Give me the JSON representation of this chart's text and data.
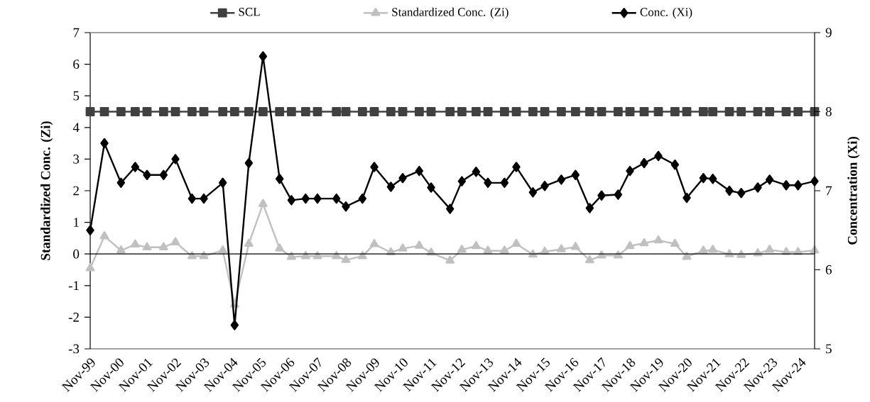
{
  "chart_data": {
    "type": "line",
    "ylabel": "Standardized Conc. (Zi)",
    "y2label": "Concentration (Xi)",
    "x": [
      "1999-11",
      "2000-05",
      "2000-12",
      "2001-06",
      "2001-11",
      "2002-06",
      "2002-11",
      "2003-06",
      "2003-11",
      "2004-07",
      "2004-12",
      "2005-06",
      "2005-12",
      "2006-07",
      "2006-12",
      "2007-06",
      "2007-11",
      "2008-07",
      "2008-11",
      "2009-06",
      "2009-11",
      "2010-06",
      "2010-11",
      "2011-06",
      "2011-11",
      "2012-07",
      "2012-12",
      "2013-06",
      "2013-11",
      "2014-06",
      "2014-11",
      "2015-06",
      "2015-11",
      "2016-06",
      "2016-12",
      "2017-06",
      "2017-11",
      "2018-06",
      "2018-11",
      "2019-05",
      "2019-11",
      "2020-06",
      "2020-11",
      "2021-06",
      "2021-10",
      "2022-05",
      "2022-10",
      "2023-05",
      "2023-10",
      "2024-05",
      "2024-10",
      "2025-05"
    ],
    "series": [
      {
        "name": "SCL",
        "color": "#404040",
        "marker": "square",
        "values": [
          4.5,
          4.5,
          4.5,
          4.5,
          4.5,
          4.5,
          4.5,
          4.5,
          4.5,
          4.5,
          4.5,
          4.5,
          4.5,
          4.5,
          4.5,
          4.5,
          4.5,
          4.5,
          4.5,
          4.5,
          4.5,
          4.5,
          4.5,
          4.5,
          4.5,
          4.5,
          4.5,
          4.5,
          4.5,
          4.5,
          4.5,
          4.5,
          4.5,
          4.5,
          4.5,
          4.5,
          4.5,
          4.5,
          4.5,
          4.5,
          4.5,
          4.5,
          4.5,
          4.5,
          4.5,
          4.5,
          4.5,
          4.5,
          4.5,
          4.5,
          4.5,
          4.5
        ]
      },
      {
        "name": "Standardized Conc. (Zi)",
        "color": "#c0c0c0",
        "marker": "triangle",
        "values": [
          -0.45,
          0.56,
          0.11,
          0.3,
          0.21,
          0.21,
          0.37,
          -0.07,
          -0.07,
          0.11,
          -1.6,
          0.32,
          1.58,
          0.17,
          -0.09,
          -0.07,
          -0.07,
          -0.07,
          -0.19,
          -0.07,
          0.31,
          0.05,
          0.17,
          0.26,
          0.04,
          -0.21,
          0.13,
          0.25,
          0.1,
          0.1,
          0.32,
          -0.02,
          0.07,
          0.15,
          0.22,
          -0.2,
          -0.05,
          -0.05,
          0.25,
          0.34,
          0.43,
          0.32,
          -0.09,
          0.1,
          0.13,
          -0.01,
          -0.03,
          0.02,
          0.13,
          0.06,
          0.06,
          0.11
        ]
      },
      {
        "name": "Conc. (Xi)",
        "color": "#000000",
        "marker": "diamond",
        "axis": "y2",
        "values": [
          6.5,
          7.6,
          7.1,
          7.3,
          7.2,
          7.2,
          7.4,
          6.9,
          6.9,
          7.1,
          5.3,
          7.35,
          8.7,
          7.15,
          6.88,
          6.9,
          6.9,
          6.9,
          6.8,
          6.9,
          7.3,
          7.05,
          7.16,
          7.25,
          7.04,
          6.77,
          7.12,
          7.24,
          7.1,
          7.1,
          7.3,
          6.98,
          7.06,
          7.14,
          7.2,
          6.78,
          6.94,
          6.95,
          7.25,
          7.35,
          7.44,
          7.33,
          6.91,
          7.16,
          7.15,
          7.0,
          6.97,
          7.04,
          7.14,
          7.07,
          7.07,
          7.12
        ]
      }
    ],
    "xlim": [
      "1999-11",
      "2025-05"
    ],
    "xticks": [
      {
        "value": "1999-11",
        "label": "Nov-99"
      },
      {
        "value": "2000-11",
        "label": "Nov-00"
      },
      {
        "value": "2001-11",
        "label": "Nov-01"
      },
      {
        "value": "2002-11",
        "label": "Nov-02"
      },
      {
        "value": "2003-11",
        "label": "Nov-03"
      },
      {
        "value": "2004-11",
        "label": "Nov-04"
      },
      {
        "value": "2005-11",
        "label": "Nov-05"
      },
      {
        "value": "2006-11",
        "label": "Nov-06"
      },
      {
        "value": "2007-11",
        "label": "Nov-07"
      },
      {
        "value": "2008-11",
        "label": "Nov-08"
      },
      {
        "value": "2009-11",
        "label": "Nov-09"
      },
      {
        "value": "2010-11",
        "label": "Nov-10"
      },
      {
        "value": "2011-11",
        "label": "Nov-11"
      },
      {
        "value": "2012-11",
        "label": "Nov-12"
      },
      {
        "value": "2013-11",
        "label": "Nov-13"
      },
      {
        "value": "2014-11",
        "label": "Nov-14"
      },
      {
        "value": "2015-11",
        "label": "Nov-15"
      },
      {
        "value": "2016-11",
        "label": "Nov-16"
      },
      {
        "value": "2017-11",
        "label": "Nov-17"
      },
      {
        "value": "2018-11",
        "label": "Nov-18"
      },
      {
        "value": "2019-11",
        "label": "Nov-19"
      },
      {
        "value": "2020-11",
        "label": "Nov-20"
      },
      {
        "value": "2021-11",
        "label": "Nov-21"
      },
      {
        "value": "2022-11",
        "label": "Nov-22"
      },
      {
        "value": "2023-11",
        "label": "Nov-23"
      },
      {
        "value": "2024-11",
        "label": "Nov-24"
      }
    ],
    "ylim": [
      -3,
      7
    ],
    "yticks": [
      -3,
      -2,
      -1,
      0,
      1,
      2,
      3,
      4,
      5,
      6,
      7
    ],
    "y2lim": [
      5,
      9
    ],
    "y2ticks": [
      5,
      6,
      7,
      8,
      9
    ],
    "legend": "top",
    "grid": false
  }
}
